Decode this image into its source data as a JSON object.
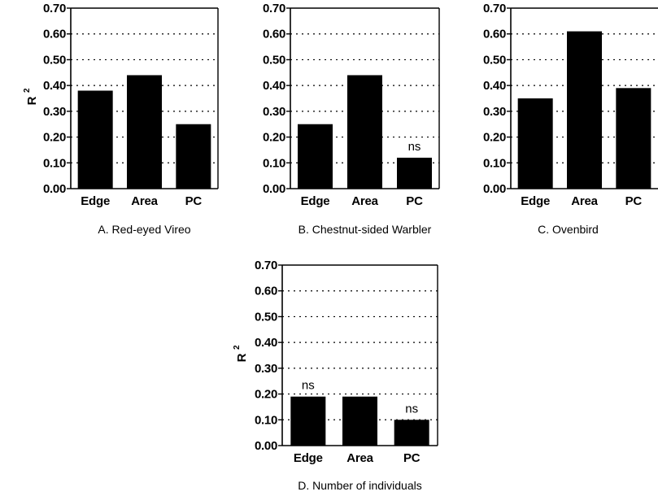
{
  "chart_data": [
    {
      "type": "bar",
      "caption": "A. Red-eyed Vireo",
      "ylabel": "R",
      "ylabel_sup": "2",
      "categories": [
        "Edge",
        "Area",
        "PC"
      ],
      "values": [
        0.38,
        0.44,
        0.25
      ],
      "annotations": [
        "",
        "",
        ""
      ],
      "ylim": [
        0,
        0.7
      ],
      "yticks": [
        "0.00",
        "0.10",
        "0.20",
        "0.30",
        "0.40",
        "0.50",
        "0.60",
        "0.70"
      ],
      "grid": "dotted horizontal",
      "bar_color": "#000000"
    },
    {
      "type": "bar",
      "caption": "B. Chestnut-sided Warbler",
      "ylabel": "",
      "ylabel_sup": "",
      "categories": [
        "Edge",
        "Area",
        "PC"
      ],
      "values": [
        0.25,
        0.44,
        0.12
      ],
      "annotations": [
        "",
        "",
        "ns"
      ],
      "ylim": [
        0,
        0.7
      ],
      "yticks": [
        "0.00",
        "0.10",
        "0.20",
        "0.30",
        "0.40",
        "0.50",
        "0.60",
        "0.70"
      ],
      "grid": "dotted horizontal",
      "bar_color": "#000000"
    },
    {
      "type": "bar",
      "caption": "C. Ovenbird",
      "ylabel": "",
      "ylabel_sup": "",
      "categories": [
        "Edge",
        "Area",
        "PC"
      ],
      "values": [
        0.35,
        0.61,
        0.39
      ],
      "annotations": [
        "",
        "",
        ""
      ],
      "ylim": [
        0,
        0.7
      ],
      "yticks": [
        "0.00",
        "0.10",
        "0.20",
        "0.30",
        "0.40",
        "0.50",
        "0.60",
        "0.70"
      ],
      "grid": "dotted horizontal",
      "bar_color": "#000000"
    },
    {
      "type": "bar",
      "caption": "D. Number of individuals",
      "ylabel": "R",
      "ylabel_sup": "2",
      "categories": [
        "Edge",
        "Area",
        "PC"
      ],
      "values": [
        0.19,
        0.19,
        0.1
      ],
      "annotations": [
        "ns",
        "",
        "ns"
      ],
      "ylim": [
        0,
        0.7
      ],
      "yticks": [
        "0.00",
        "0.10",
        "0.20",
        "0.30",
        "0.40",
        "0.50",
        "0.60",
        "0.70"
      ],
      "grid": "dotted horizontal",
      "bar_color": "#000000"
    }
  ]
}
